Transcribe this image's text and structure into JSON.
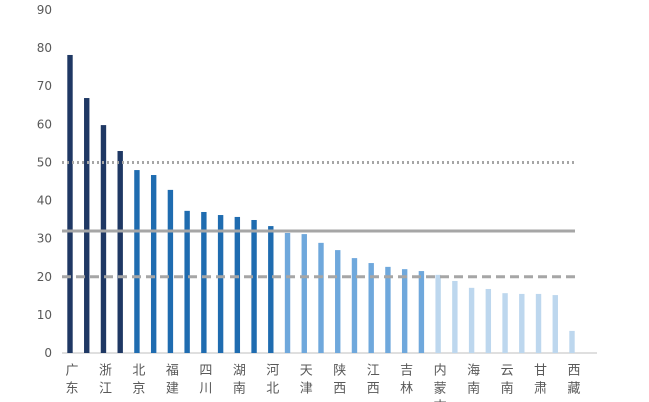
{
  "chart_data": {
    "type": "bar",
    "categories": [
      "广东",
      null,
      "浙江",
      null,
      "北京",
      null,
      "福建",
      null,
      "四川",
      null,
      "湖南",
      null,
      "河北",
      null,
      "天津",
      null,
      "陕西",
      null,
      "江西",
      null,
      "吉林",
      null,
      "内蒙古",
      null,
      "海南",
      null,
      "云南",
      null,
      "甘肃",
      null,
      "西藏"
    ],
    "values": [
      78.2,
      66.9,
      59.8,
      53.0,
      48.0,
      46.7,
      42.8,
      37.3,
      37.0,
      36.2,
      35.7,
      34.9,
      33.3,
      31.5,
      31.2,
      28.9,
      27.0,
      24.9,
      23.6,
      22.6,
      22.0,
      21.5,
      20.5,
      18.9,
      17.1,
      16.8,
      15.7,
      15.5,
      15.5,
      15.2,
      5.8
    ],
    "colors": [
      "#1f3864",
      "#1f3864",
      "#1f3864",
      "#1f3864",
      "#1f6cb0",
      "#1f6cb0",
      "#1f6cb0",
      "#1f6cb0",
      "#1f6cb0",
      "#1f6cb0",
      "#1f6cb0",
      "#1f6cb0",
      "#1f6cb0",
      "#6fa8dc",
      "#6fa8dc",
      "#6fa8dc",
      "#6fa8dc",
      "#6fa8dc",
      "#6fa8dc",
      "#6fa8dc",
      "#6fa8dc",
      "#6fa8dc",
      "#bdd7ee",
      "#bdd7ee",
      "#bdd7ee",
      "#bdd7ee",
      "#bdd7ee",
      "#bdd7ee",
      "#bdd7ee",
      "#bdd7ee",
      "#bdd7ee"
    ],
    "ylim": [
      0,
      90
    ],
    "yticks": [
      0,
      10,
      20,
      30,
      40,
      50,
      60,
      70,
      80,
      90
    ],
    "grid": false,
    "reference_lines": [
      {
        "value": 50,
        "style": "dotted"
      },
      {
        "value": 32,
        "style": "solid"
      },
      {
        "value": 20,
        "style": "dashed"
      }
    ]
  }
}
